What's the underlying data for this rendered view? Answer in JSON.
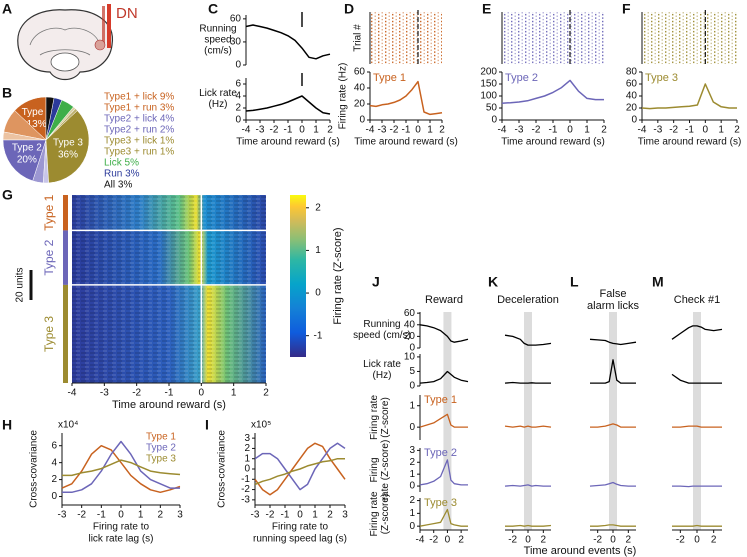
{
  "A": {
    "letter": "A",
    "label": "DN"
  },
  "B": {
    "letter": "B",
    "slices": [
      {
        "name": "Type 1",
        "value": 13,
        "value_label": "13%",
        "color": "#c8621f"
      },
      {
        "value": 9,
        "color": "#de9560"
      },
      {
        "value": 3,
        "color": "#ecc3a2"
      },
      {
        "name": "Type 2",
        "value": 20,
        "value_label": "20%",
        "color": "#6c66b8"
      },
      {
        "value": 4,
        "color": "#9c97d2"
      },
      {
        "value": 2,
        "color": "#c8c5e8"
      },
      {
        "name": "Type 3",
        "value": 36,
        "value_label": "36%",
        "color": "#9c8b30"
      },
      {
        "value": 1,
        "color": "#bcae6a"
      },
      {
        "value": 1,
        "color": "#d9cfa3"
      },
      {
        "value": 5,
        "color": "#3fae49"
      },
      {
        "value": 3,
        "color": "#2b3a9a"
      },
      {
        "value": 3,
        "color": "#111111"
      }
    ],
    "legend": [
      {
        "text": "Type1 + lick 9%",
        "color": "#c8621f"
      },
      {
        "text": "Type1 + run 3%",
        "color": "#c8621f"
      },
      {
        "text": "Type2 + lick 4%",
        "color": "#6c66b8"
      },
      {
        "text": "Type2 + run 2%",
        "color": "#6c66b8"
      },
      {
        "text": "Type3 + lick 1%",
        "color": "#9c8b30"
      },
      {
        "text": "Type3 + run 1%",
        "color": "#9c8b30"
      },
      {
        "text": "Lick 5%",
        "color": "#3fae49"
      },
      {
        "text": "Run 3%",
        "color": "#2b3a9a"
      },
      {
        "text": "All 3%",
        "color": "#111111"
      }
    ]
  },
  "C": {
    "letter": "C",
    "xlim": [
      -4,
      2
    ],
    "xticks": [
      -4,
      -3,
      -2,
      -1,
      0,
      1,
      2
    ],
    "xlabel": "Time around reward (s)",
    "x": [
      -4,
      -3.5,
      -3,
      -2.5,
      -2,
      -1.5,
      -1,
      -0.5,
      0,
      0.5,
      1,
      1.5,
      2
    ],
    "speed": {
      "ylabel": [
        "Running",
        "speed",
        "(cm/s)"
      ],
      "ylim": [
        0,
        65
      ],
      "yticks": [
        0,
        30,
        60
      ],
      "color": "#000000",
      "values": [
        50,
        52,
        50,
        48,
        45,
        42,
        38,
        32,
        22,
        10,
        8,
        12,
        14
      ]
    },
    "lick": {
      "ylabel": [
        "Lick rate",
        "(Hz)"
      ],
      "ylim": [
        0,
        7
      ],
      "yticks": [
        0,
        2,
        4,
        6
      ],
      "color": "#000000",
      "values": [
        1.5,
        1.6,
        1.8,
        2,
        2.3,
        2.6,
        3,
        3.5,
        4,
        3,
        2,
        1.2,
        1
      ]
    }
  },
  "D": {
    "letter": "D",
    "xlim": [
      -4,
      2
    ],
    "xticks": [
      -4,
      -3,
      -2,
      -1,
      0,
      1,
      2
    ],
    "xlabel": "Time around reward (s)",
    "raster_label": "Trial #",
    "ylabel": "Firing rate (Hz)",
    "ylim": [
      0,
      60
    ],
    "yticks": [
      0,
      20,
      40,
      60
    ],
    "x": [
      -4,
      -3.5,
      -3,
      -2.5,
      -2,
      -1.5,
      -1,
      -0.5,
      0,
      0.5,
      1,
      1.5,
      2
    ],
    "series": {
      "name": "Type 1",
      "color": "#c8621f",
      "values": [
        18,
        17,
        19,
        20,
        22,
        25,
        30,
        38,
        48,
        10,
        7,
        8,
        9
      ]
    }
  },
  "E": {
    "letter": "E",
    "xlim": [
      -4,
      2
    ],
    "xticks": [
      -4,
      -3,
      -2,
      -1,
      0,
      1,
      2
    ],
    "xlabel": "Time around reward (s)",
    "ylim": [
      0,
      200
    ],
    "yticks": [
      0,
      50,
      100,
      150,
      200
    ],
    "x": [
      -4,
      -3.5,
      -3,
      -2.5,
      -2,
      -1.5,
      -1,
      -0.5,
      0,
      0.5,
      1,
      1.5,
      2
    ],
    "series": {
      "name": "Type 2",
      "color": "#6c66b8",
      "values": [
        70,
        72,
        75,
        80,
        90,
        100,
        115,
        135,
        165,
        120,
        90,
        85,
        85
      ]
    }
  },
  "F": {
    "letter": "F",
    "xlim": [
      -4,
      2
    ],
    "xticks": [
      -4,
      -3,
      -2,
      -1,
      0,
      1,
      2
    ],
    "xlabel": "Time around reward (s)",
    "ylim": [
      0,
      80
    ],
    "yticks": [
      0,
      20,
      40,
      60,
      80
    ],
    "x": [
      -4,
      -3.5,
      -3,
      -2.5,
      -2,
      -1.5,
      -1,
      -0.5,
      0,
      0.5,
      1,
      1.5,
      2
    ],
    "series": {
      "name": "Type 3",
      "color": "#9c8b30",
      "values": [
        20,
        19,
        20,
        20,
        21,
        22,
        23,
        25,
        60,
        30,
        22,
        20,
        20
      ]
    }
  },
  "G": {
    "letter": "G",
    "scale_label": "20 units",
    "xlim": [
      -4,
      2
    ],
    "xticks": [
      -4,
      -3,
      -2,
      -1,
      0,
      1,
      2
    ],
    "xlabel": "Time around reward (s)",
    "groups": [
      {
        "name": "Type 1",
        "color": "#c8621f"
      },
      {
        "name": "Type 2",
        "color": "#6c66b8"
      },
      {
        "name": "Type 3",
        "color": "#9c8b30"
      }
    ],
    "colorbar": {
      "label": "Firing rate (Z-score)",
      "lim": [
        -1.5,
        2.3
      ],
      "ticks": [
        -1,
        0,
        1,
        2
      ]
    }
  },
  "H": {
    "letter": "H",
    "ylabel": "Cross-covariance",
    "multiplier": "x10⁴",
    "xlabel": [
      "Firing rate to",
      "lick rate lag (s)"
    ],
    "xlim": [
      -3,
      3
    ],
    "xticks": [
      -3,
      -2,
      -1,
      0,
      1,
      2,
      3
    ],
    "ylim": [
      -1,
      7.5
    ],
    "yticks": [
      0,
      2,
      4,
      6
    ],
    "x": [
      -3,
      -2.5,
      -2,
      -1.5,
      -1,
      -0.5,
      0,
      0.5,
      1,
      1.5,
      2,
      2.5,
      3
    ],
    "series": [
      {
        "name": "Type 1",
        "color": "#c8621f",
        "values": [
          1,
          1.5,
          3,
          5,
          6,
          5.5,
          4,
          2.5,
          1.5,
          0.8,
          0.5,
          0.8,
          1.2
        ]
      },
      {
        "name": "Type 2",
        "color": "#6c66b8",
        "values": [
          0.5,
          0.5,
          0.8,
          1.5,
          3,
          5,
          6.5,
          5,
          3,
          2,
          1.5,
          1,
          1
        ]
      },
      {
        "name": "Type 3",
        "color": "#9c8b30",
        "values": [
          2.5,
          2.5,
          2.8,
          3,
          3.3,
          3.8,
          4.3,
          4,
          3.5,
          3,
          2.8,
          2.7,
          2.6
        ]
      }
    ]
  },
  "I": {
    "letter": "I",
    "ylabel": "Cross-covariance",
    "multiplier": "x10⁵",
    "xlabel": [
      "Firing rate to",
      "running speed lag (s)"
    ],
    "xlim": [
      -3,
      3
    ],
    "xticks": [
      -3,
      -2,
      -1,
      0,
      1,
      2,
      3
    ],
    "ylim": [
      -3.5,
      3.5
    ],
    "yticks": [
      -3,
      -2,
      -1,
      0,
      1,
      2,
      3
    ],
    "x": [
      -3,
      -2.5,
      -2,
      -1.5,
      -1,
      -0.5,
      0,
      0.5,
      1,
      1.5,
      2,
      2.5,
      3
    ],
    "series": [
      {
        "color": "#c8621f",
        "values": [
          -1,
          -2,
          -2.5,
          -2,
          -1,
          0,
          1,
          2,
          2.5,
          2.2,
          1,
          0,
          -1
        ]
      },
      {
        "color": "#6c66b8",
        "values": [
          1,
          1.5,
          1.5,
          1,
          0,
          -1,
          -2,
          -1.5,
          0,
          1,
          2,
          2.5,
          2
        ]
      },
      {
        "color": "#9c8b30",
        "values": [
          -1.5,
          -1.2,
          -1,
          -0.7,
          -0.5,
          -0.2,
          0,
          0.3,
          0.5,
          0.7,
          0.8,
          1,
          1
        ]
      }
    ]
  },
  "JM": {
    "xlabel": "Time around events (s)",
    "rows": [
      {
        "ylabel": [
          "Running",
          "speed (cm/s)"
        ],
        "color": "#000000",
        "ylim": [
          0,
          62
        ],
        "yticks": [
          0,
          20,
          40,
          60
        ]
      },
      {
        "ylabel": [
          "Lick rate",
          "(Hz)"
        ],
        "color": "#000000",
        "ylim": [
          0,
          11
        ],
        "yticks": [
          0,
          5,
          10
        ]
      },
      {
        "ylabel": [
          "Firing rate",
          "(Z-score)"
        ],
        "name": "Type 1",
        "color": "#c8621f",
        "ylim": [
          -0.6,
          1.5
        ],
        "yticks": [
          0,
          1
        ]
      },
      {
        "ylabel": [
          "Firing",
          "rate (Z-score)"
        ],
        "name": "Type 2",
        "color": "#6c66b8",
        "ylim": [
          -0.5,
          3.2
        ],
        "yticks": [
          0,
          1,
          2,
          3
        ]
      },
      {
        "ylabel": [
          "Firing rate",
          "(Z-score)"
        ],
        "name": "Type 3",
        "color": "#9c8b30",
        "ylim": [
          -0.3,
          2.2
        ],
        "yticks": [
          0,
          1,
          2
        ]
      }
    ],
    "panels": [
      {
        "letter": "J",
        "title": [
          "Reward"
        ],
        "xlim": [
          -4,
          3
        ],
        "xticks": [
          -4,
          -2,
          0,
          2
        ],
        "x": [
          -4,
          -3,
          -2,
          -1,
          0,
          0.5,
          1,
          2,
          3
        ],
        "series": [
          [
            40,
            38,
            35,
            30,
            20,
            12,
            10,
            12,
            15
          ],
          [
            1,
            1.2,
            1.5,
            2.5,
            5,
            4,
            3,
            2,
            1.5
          ],
          [
            0,
            0.1,
            0.2,
            0.4,
            0.6,
            0.1,
            0,
            0,
            0
          ],
          [
            0.1,
            0.2,
            0.4,
            0.8,
            2.2,
            0.5,
            0.2,
            0.1,
            0.1
          ],
          [
            0,
            0.1,
            0.2,
            0.3,
            1.3,
            0.2,
            0.1,
            0,
            0
          ]
        ]
      },
      {
        "letter": "K",
        "title": [
          "Deceleration"
        ],
        "xlim": [
          -3,
          3
        ],
        "xticks": [
          -2,
          0,
          2
        ],
        "x": [
          -3,
          -2,
          -1,
          -0.5,
          0,
          0.5,
          1,
          2,
          3
        ],
        "series": [
          [
            22,
            20,
            15,
            8,
            5,
            5,
            5,
            6,
            8
          ],
          [
            1,
            1.2,
            1,
            1,
            1,
            1.1,
            1,
            1,
            1
          ],
          [
            0.05,
            0,
            0.05,
            0,
            0.05,
            0,
            0,
            0.05,
            0
          ],
          [
            0,
            0.05,
            0,
            0.05,
            0.1,
            0,
            0.05,
            0,
            0
          ],
          [
            0,
            0,
            0.05,
            0,
            0.05,
            0,
            0,
            0,
            0.05
          ]
        ]
      },
      {
        "letter": "L",
        "title": [
          "False",
          "alarm licks"
        ],
        "xlim": [
          -3,
          3
        ],
        "xticks": [
          -2,
          0,
          2
        ],
        "x": [
          -3,
          -2,
          -1,
          -0.5,
          0,
          0.5,
          1,
          2,
          3
        ],
        "series": [
          [
            15,
            14,
            13,
            10,
            8,
            7,
            6,
            8,
            10
          ],
          [
            1,
            1,
            1,
            1.5,
            9,
            2,
            1,
            1,
            1
          ],
          [
            0,
            0,
            0.05,
            0.1,
            0.15,
            0.1,
            0,
            0,
            0
          ],
          [
            0,
            0.05,
            0.1,
            0.2,
            0.3,
            0.15,
            0.05,
            0,
            0
          ],
          [
            0,
            0,
            0.05,
            0.1,
            0.1,
            0.05,
            0,
            0,
            0
          ]
        ]
      },
      {
        "letter": "M",
        "title": [
          "Check #1"
        ],
        "xlim": [
          -3,
          3
        ],
        "xticks": [
          -2,
          0,
          2
        ],
        "x": [
          -3,
          -2,
          -1,
          -0.5,
          0,
          0.5,
          1,
          2,
          3
        ],
        "series": [
          [
            15,
            25,
            35,
            38,
            38,
            36,
            32,
            30,
            32
          ],
          [
            4,
            2,
            1,
            1,
            1,
            1,
            1,
            1,
            1
          ],
          [
            0,
            0,
            0.05,
            0.05,
            0.05,
            0,
            0,
            0,
            0
          ],
          [
            0,
            0,
            -0.05,
            0,
            0,
            0,
            0,
            0,
            0
          ],
          [
            0,
            0,
            0,
            0,
            0.05,
            0,
            0,
            0,
            0
          ]
        ]
      }
    ]
  }
}
